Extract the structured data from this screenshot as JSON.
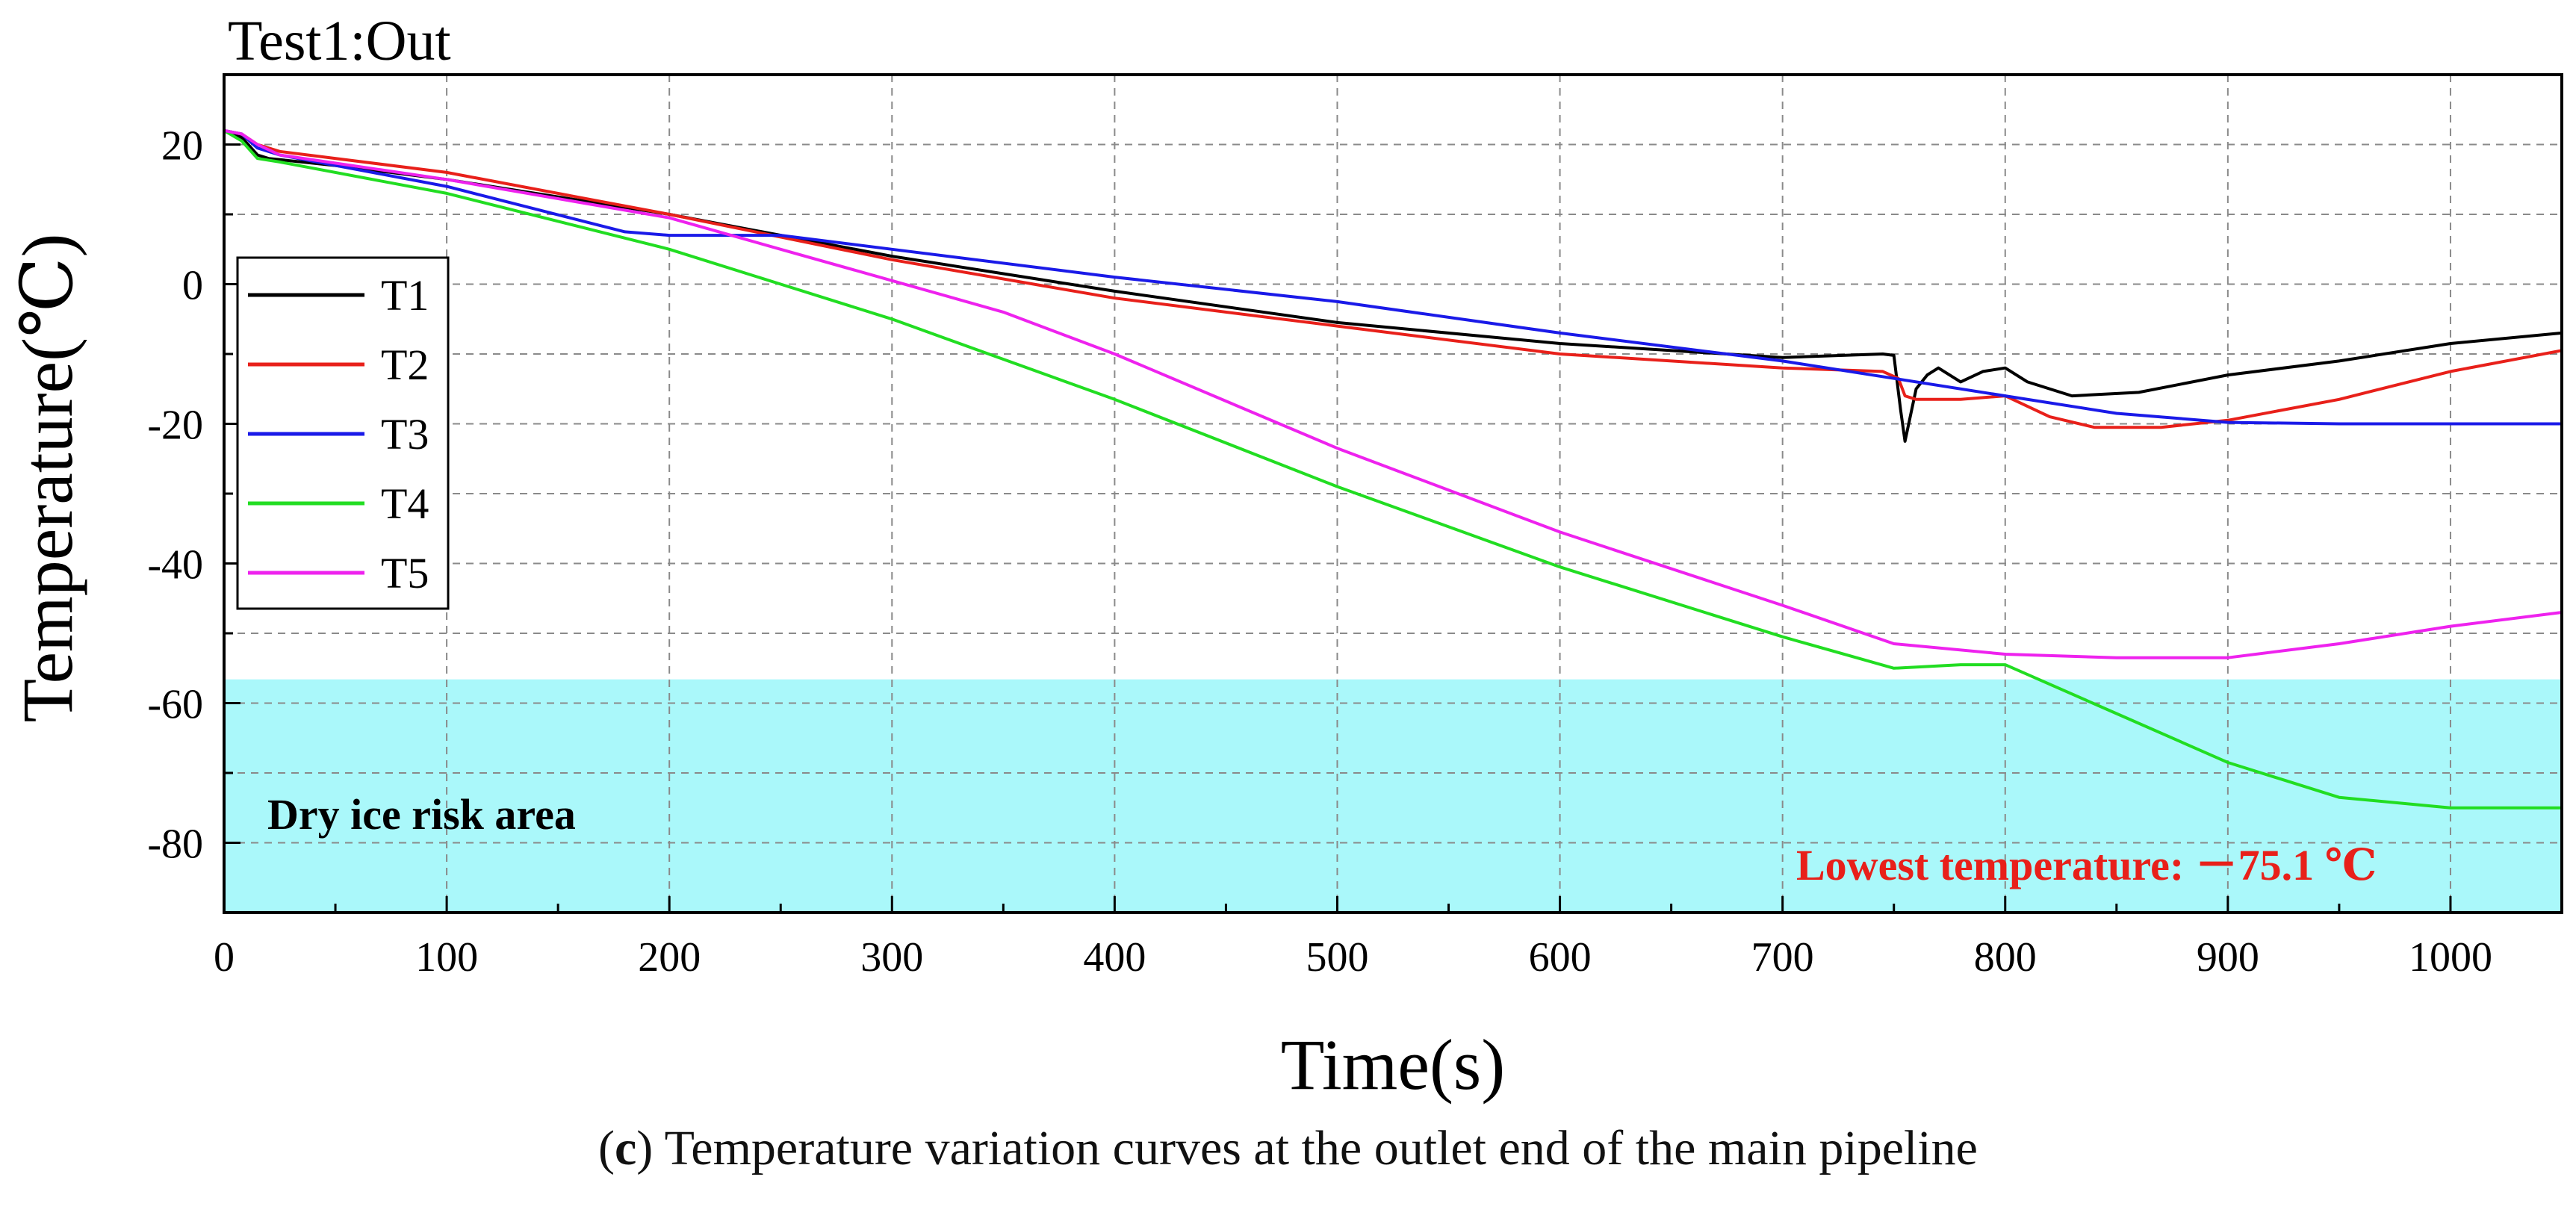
{
  "chart_data": {
    "type": "line",
    "title": "Test1:Out",
    "xlabel": "Time(s)",
    "ylabel": "Temperature(℃)",
    "xlim": [
      0,
      1050
    ],
    "ylim": [
      -90,
      30
    ],
    "x_ticks": [
      0,
      100,
      200,
      300,
      400,
      500,
      600,
      700,
      800,
      900,
      1000
    ],
    "y_ticks": [
      20,
      0,
      -20,
      -40,
      -60,
      -80
    ],
    "grid": true,
    "legend_position": "left",
    "risk_area": {
      "label": "Dry ice risk area",
      "y_range": [
        -90,
        -56.6
      ],
      "color": "#aaf8fa"
    },
    "annotation": {
      "text": "Lowest temperature: －75.1 ℃",
      "color": "#e8201a"
    },
    "series": [
      {
        "name": "T1",
        "color": "#000000",
        "x": [
          0,
          8,
          15,
          20,
          50,
          100,
          200,
          300,
          400,
          500,
          600,
          700,
          745,
          750,
          753,
          755,
          760,
          765,
          770,
          780,
          790,
          800,
          810,
          830,
          860,
          900,
          950,
          1000,
          1050
        ],
        "y": [
          22,
          21,
          18.5,
          18,
          17,
          15,
          10,
          4,
          -1,
          -5.5,
          -8.5,
          -10.5,
          -10,
          -10.2,
          -18,
          -22.5,
          -15,
          -13,
          -12,
          -14,
          -12.5,
          -12,
          -14,
          -16,
          -15.5,
          -13,
          -11,
          -8.5,
          -7
        ]
      },
      {
        "name": "T2",
        "color": "#e8201a",
        "x": [
          0,
          8,
          15,
          25,
          100,
          200,
          300,
          400,
          500,
          600,
          700,
          745,
          752,
          755,
          760,
          780,
          800,
          820,
          840,
          870,
          900,
          950,
          1000,
          1050
        ],
        "y": [
          22,
          21.5,
          20,
          19,
          16,
          10,
          3.5,
          -2,
          -6,
          -10,
          -12,
          -12.5,
          -13.5,
          -16,
          -16.5,
          -16.5,
          -16,
          -19,
          -20.5,
          -20.5,
          -19.5,
          -16.5,
          -12.5,
          -9.5
        ]
      },
      {
        "name": "T3",
        "color": "#1a1ae8",
        "x": [
          0,
          8,
          15,
          25,
          100,
          180,
          200,
          250,
          300,
          400,
          500,
          600,
          700,
          750,
          800,
          850,
          900,
          950,
          1000,
          1050
        ],
        "y": [
          22,
          21.5,
          19.5,
          18.5,
          14,
          7.5,
          7,
          7,
          5,
          1,
          -2.5,
          -7,
          -11,
          -13.5,
          -16,
          -18.5,
          -19.8,
          -20,
          -20,
          -20
        ]
      },
      {
        "name": "T4",
        "color": "#22dd22",
        "x": [
          0,
          8,
          15,
          25,
          100,
          200,
          250,
          300,
          400,
          500,
          600,
          700,
          750,
          780,
          800,
          850,
          900,
          950,
          1000,
          1050
        ],
        "y": [
          22,
          20.5,
          18,
          17.5,
          13,
          5,
          0,
          -5,
          -16.5,
          -29,
          -40.5,
          -50.5,
          -55,
          -54.5,
          -54.5,
          -61.5,
          -68.5,
          -73.5,
          -75,
          -75
        ]
      },
      {
        "name": "T5",
        "color": "#ee22ee",
        "x": [
          0,
          8,
          15,
          25,
          100,
          200,
          250,
          300,
          350,
          400,
          500,
          600,
          700,
          750,
          800,
          850,
          900,
          950,
          1000,
          1050
        ],
        "y": [
          22,
          21.5,
          20,
          18.5,
          15,
          9.5,
          5,
          0.5,
          -4,
          -10,
          -23.5,
          -35.5,
          -46,
          -51.5,
          -53,
          -53.5,
          -53.5,
          -51.5,
          -49,
          -47
        ]
      }
    ]
  },
  "caption": {
    "label": "c",
    "text": " Temperature variation curves at the outlet end of the main pipeline"
  }
}
